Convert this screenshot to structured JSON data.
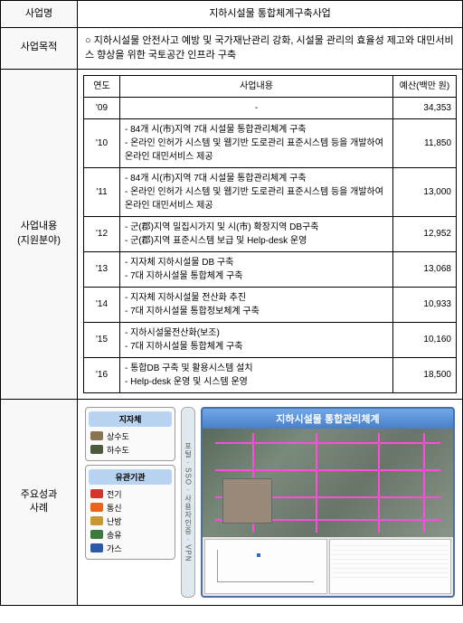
{
  "labels": {
    "project_name": "사업명",
    "purpose": "사업목적",
    "content": "사업내용\n(지원분야)",
    "cases": "주요성과\n사례"
  },
  "project_title": "지하시설물 통합체계구축사업",
  "purpose_text": "○ 지하시설물 안전사고 예방 및 국가재난관리 강화, 시설물 관리의 효율성 제고와 대민서비스 향상을 위한 국토공간 인프라 구축",
  "table": {
    "headers": {
      "year": "연도",
      "desc": "사업내용",
      "budget": "예산(백만 원)"
    },
    "rows": [
      {
        "year": "'09",
        "desc": "-",
        "budget": "34,353"
      },
      {
        "year": "'10",
        "desc": "- 84개 시(市)지역 7대 시설물 통합관리체계 구축\n- 온라인 인허가 시스템 및 웹기반 도로관리 표준시스템 등을 개발하여 온라인 대민서비스 제공",
        "budget": "11,850"
      },
      {
        "year": "'11",
        "desc": "- 84개 시(市)지역 7대 시설물 통합관리체계 구축\n- 온라인 인허가 시스템 및 웹기반 도로관리 표준시스템 등을 개발하여 온라인 대민서비스 제공",
        "budget": "13,000"
      },
      {
        "year": "'12",
        "desc": "- 군(郡)지역 밀집시가지 및 시(市) 확장지역 DB구축\n- 군(郡)지역 표준시스템 보급 및 Help-desk 운영",
        "budget": "12,952"
      },
      {
        "year": "'13",
        "desc": "- 지자체 지하시설물 DB 구축\n- 7대 지하시설물 통합체계 구축",
        "budget": "13,068"
      },
      {
        "year": "'14",
        "desc": "- 지자체 지하시설물 전산화 추진\n- 7대 지하시설물 통합정보체계 구축",
        "budget": "10,933"
      },
      {
        "year": "'15",
        "desc": "- 지하시설물전산화(보조)\n- 7대 지하시설물 통합체계 구축",
        "budget": "10,160"
      },
      {
        "year": "'16",
        "desc": "- 통합DB 구축 및 활용시스템 설치\n- Help-desk 운영 및 시스템 운영",
        "budget": "18,500"
      }
    ]
  },
  "legend": {
    "group1": {
      "title": "지자체",
      "items": [
        {
          "label": "상수도",
          "color": "#8b7355"
        },
        {
          "label": "하수도",
          "color": "#4a5a3a"
        }
      ]
    },
    "group2": {
      "title": "유관기관",
      "items": [
        {
          "label": "전기",
          "color": "#d4342c"
        },
        {
          "label": "통신",
          "color": "#e8651a"
        },
        {
          "label": "난방",
          "color": "#c89830"
        },
        {
          "label": "송유",
          "color": "#3a7a3a"
        },
        {
          "label": "가스",
          "color": "#2a5aa8"
        }
      ]
    },
    "portal": "포털 · SSO · 사용자인증 · VPN"
  },
  "map_title": "지하시설물 통합관리체계",
  "styling": {
    "map_line_color": "#ff4ddb",
    "map_border": "#4a6fa5",
    "legend_title_bg": "#b8d4f0"
  }
}
